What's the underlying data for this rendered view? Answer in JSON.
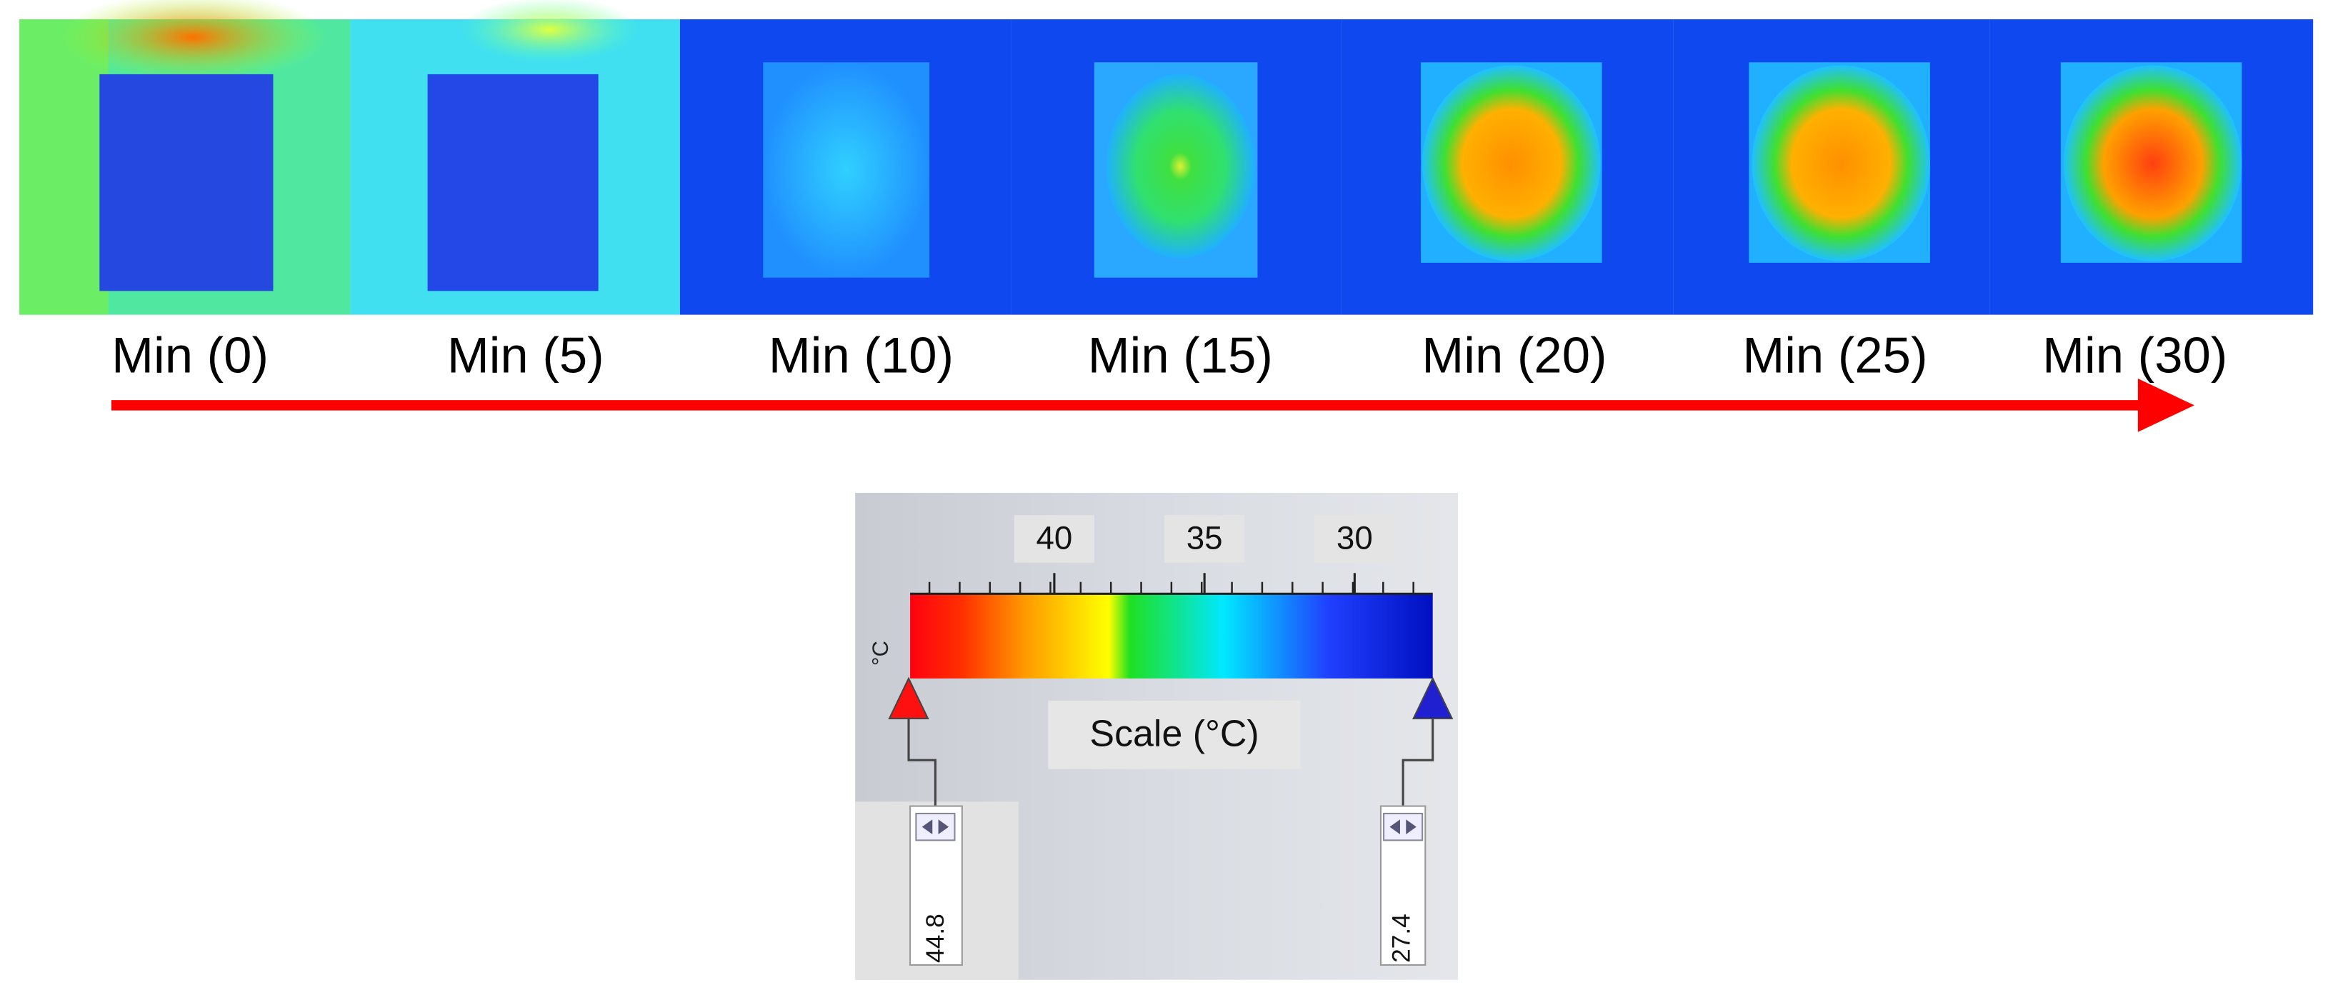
{
  "frames": [
    {
      "label": "Min (0)"
    },
    {
      "label": "Min (5)"
    },
    {
      "label": "Min (10)"
    },
    {
      "label": "Min (15)"
    },
    {
      "label": "Min (20)"
    },
    {
      "label": "Min (25)"
    },
    {
      "label": "Min (30)"
    }
  ],
  "scale": {
    "title": "Scale (°C)",
    "unit": "°C",
    "ticks": [
      40,
      35,
      30
    ],
    "max": 44.8,
    "min": 27.4
  }
}
